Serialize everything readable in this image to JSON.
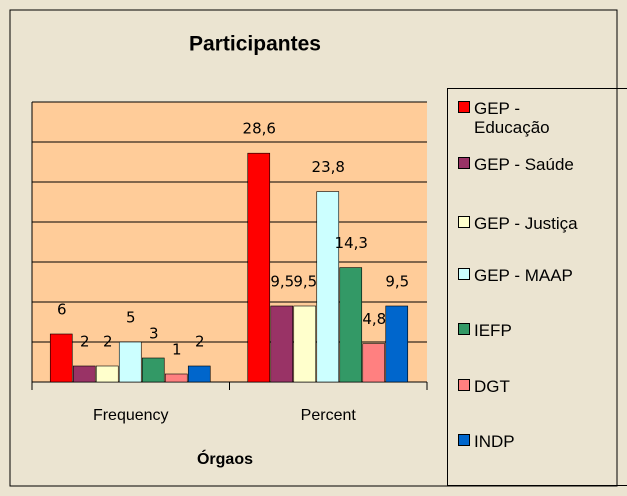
{
  "chart_data": {
    "type": "bar",
    "title": "Participantes",
    "x_label": "Órgaos",
    "categories": [
      "Frequency",
      "Percent"
    ],
    "series": [
      {
        "name": "GEP - Educação",
        "color": "#ff0000",
        "values": [
          6,
          28.6
        ],
        "value_labels": [
          "6",
          "28,6"
        ]
      },
      {
        "name": "GEP - Saúde",
        "color": "#993366",
        "values": [
          2,
          9.5
        ],
        "value_labels": [
          "2",
          "9,5"
        ]
      },
      {
        "name": "GEP - Justiça",
        "color": "#ffffcc",
        "values": [
          2,
          9.5
        ],
        "value_labels": [
          "2",
          "9,5"
        ]
      },
      {
        "name": "GEP - MAAP",
        "color": "#ccffff",
        "values": [
          5,
          23.8
        ],
        "value_labels": [
          "5",
          "23,8"
        ]
      },
      {
        "name": "IEFP",
        "color": "#339966",
        "values": [
          3,
          14.3
        ],
        "value_labels": [
          "3",
          "14,3"
        ]
      },
      {
        "name": "DGT",
        "color": "#ff8080",
        "values": [
          1,
          4.8
        ],
        "value_labels": [
          "1",
          "4,8"
        ]
      },
      {
        "name": "INDP",
        "color": "#0066cc",
        "values": [
          2,
          9.5
        ],
        "value_labels": [
          "2",
          "9,5"
        ]
      }
    ],
    "ylim": [
      0,
      35
    ],
    "yticks": [
      0,
      5,
      10,
      15,
      20,
      25,
      30,
      35
    ],
    "grid": true,
    "legend": "right"
  }
}
